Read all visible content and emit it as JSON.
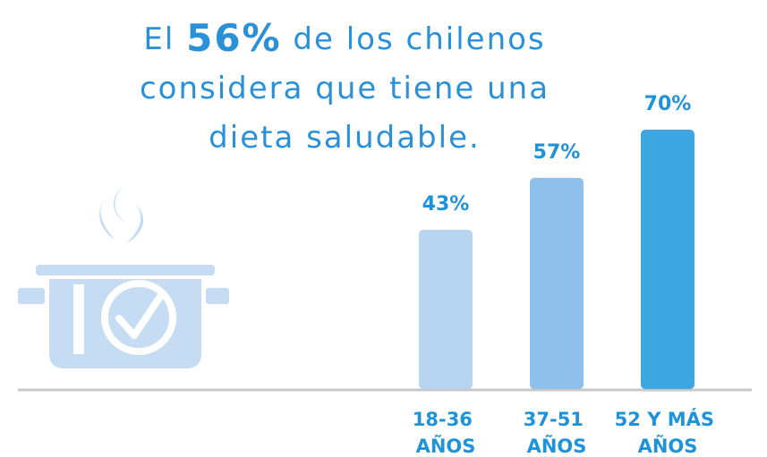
{
  "chart_data": {
    "type": "bar",
    "title": [
      [
        "El ",
        "56%",
        " de los chilenos"
      ],
      [
        "considera que tiene una"
      ],
      [
        "dieta saludable."
      ]
    ],
    "categories": [
      "18-36 AÑOS",
      "37-51 AÑOS",
      "52 Y MÁS AÑOS"
    ],
    "values": [
      43,
      57,
      70
    ],
    "value_labels": [
      "43%",
      "57%",
      "70%"
    ],
    "colors": [
      "#b7d4f0",
      "#8ec0eb",
      "#3ea7e1"
    ]
  }
}
